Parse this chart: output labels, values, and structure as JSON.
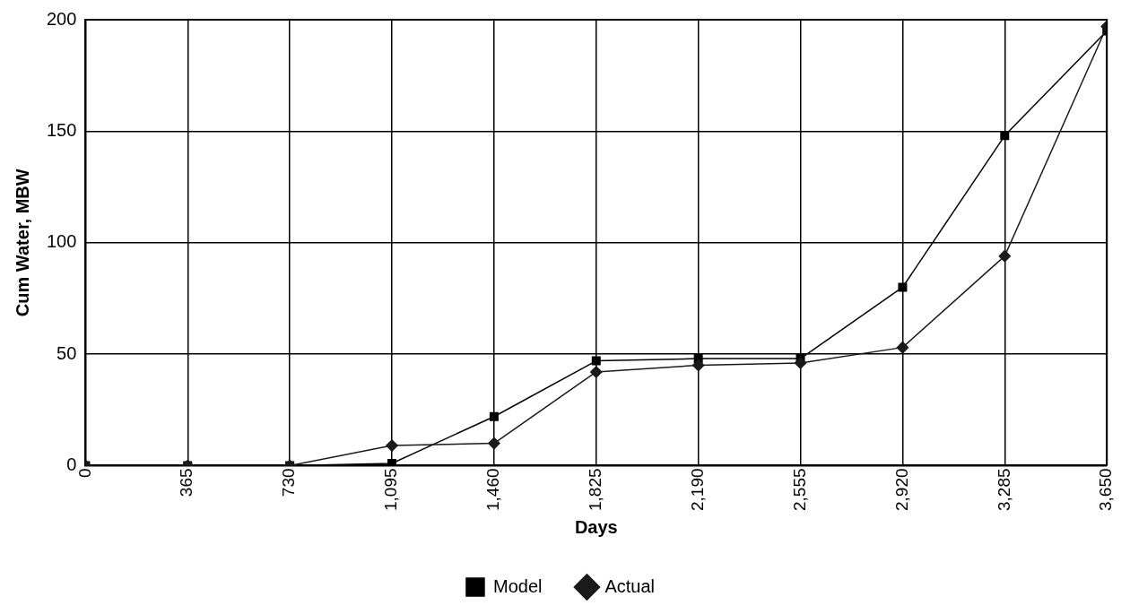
{
  "chart_data": {
    "type": "line",
    "xlabel": "Days",
    "ylabel": "Cum Water, MBW",
    "x": [
      0,
      365,
      730,
      1095,
      1460,
      1825,
      2190,
      2555,
      2920,
      3285,
      3650
    ],
    "series": [
      {
        "name": "Model",
        "color": "#000000",
        "marker": "square",
        "values": [
          0,
          0,
          0,
          1,
          22,
          47,
          48,
          48,
          80,
          148,
          195
        ]
      },
      {
        "name": "Actual",
        "color": "#1a1a1a",
        "marker": "diamond",
        "values": [
          0,
          0,
          0,
          9,
          10,
          42,
          45,
          46,
          53,
          94,
          197
        ]
      }
    ],
    "xlim": [
      0,
      3650
    ],
    "xticks": [
      0,
      365,
      730,
      {
        "value": 1095,
        "label": "1,095"
      },
      {
        "value": 1460,
        "label": "1,460"
      },
      {
        "value": 1825,
        "label": "1,825"
      },
      {
        "value": 2190,
        "label": "2,190"
      },
      {
        "value": 2555,
        "label": "2,555"
      },
      {
        "value": 2920,
        "label": "2,920"
      },
      {
        "value": 3285,
        "label": "3,285"
      },
      {
        "value": 3650,
        "label": "3,650"
      }
    ],
    "ylim": [
      0,
      200
    ],
    "yticks": [
      0,
      50,
      100,
      150,
      200
    ],
    "grid": true,
    "legend": "bottom",
    "line_style": "solid"
  }
}
